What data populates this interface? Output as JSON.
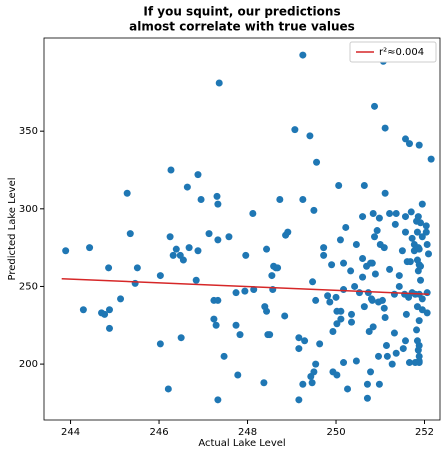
{
  "chart_data": {
    "type": "scatter",
    "title": [
      "If you squint, our predictions",
      "almost correlate with true values"
    ],
    "xlabel": "Actual Lake Level",
    "ylabel": "Predicted Lake Level",
    "xlim": [
      243.4,
      252.35
    ],
    "ylim": [
      164,
      410
    ],
    "xticks": [
      244,
      246,
      248,
      250,
      252
    ],
    "yticks": [
      200,
      250,
      300,
      350
    ],
    "legend": "upper right",
    "series": [
      {
        "color": "#1f77b4",
        "x": [
          243.89,
          244.29,
          244.43,
          244.7,
          244.77,
          244.86,
          244.88,
          244.88,
          245.13,
          245.28,
          245.35,
          245.46,
          245.51,
          246.03,
          246.03,
          246.21,
          246.27,
          246.25,
          246.32,
          246.39,
          246.48,
          246.5,
          246.55,
          246.64,
          246.68,
          246.84,
          246.88,
          246.95,
          246.88,
          247.13,
          247.24,
          247.29,
          247.36,
          247.31,
          247.33,
          247.33,
          247.24,
          247.33,
          247.33,
          247.47,
          247.58,
          247.74,
          247.74,
          247.78,
          247.83,
          247.94,
          247.96,
          248.12,
          248.14,
          248.37,
          248.39,
          248.43,
          248.43,
          248.46,
          248.5,
          248.55,
          248.59,
          248.64,
          248.57,
          248.68,
          248.84,
          248.73,
          248.86,
          248.91,
          249.07,
          249.25,
          249.25,
          249.16,
          249.16,
          249.16,
          249.25,
          249.29,
          249.41,
          249.43,
          249.46,
          249.5,
          249.54,
          249.56,
          249.5,
          249.47,
          249.54,
          249.63,
          249.72,
          249.72,
          249.81,
          249.86,
          249.9,
          249.93,
          249.93,
          250.0,
          250.02,
          250.1,
          250.02,
          250.02,
          250.11,
          250.06,
          250.11,
          250.17,
          250.17,
          250.22,
          250.17,
          250.26,
          250.33,
          250.35,
          250.35,
          250.42,
          250.46,
          250.46,
          250.53,
          250.6,
          250.6,
          250.6,
          250.64,
          250.64,
          250.69,
          250.73,
          250.78,
          250.71,
          250.71,
          250.75,
          250.8,
          250.82,
          250.84,
          250.84,
          250.87,
          250.78,
          250.82,
          250.87,
          250.89,
          250.93,
          250.96,
          250.96,
          250.98,
          251.0,
          250.98,
          251.07,
          251.05,
          251.09,
          251.09,
          251.11,
          251.11,
          251.11,
          251.14,
          251.16,
          251.21,
          251.21,
          251.27,
          251.32,
          251.32,
          251.34,
          251.36,
          251.36,
          251.43,
          251.43,
          251.5,
          251.52,
          251.55,
          251.57,
          251.57,
          251.57,
          251.59,
          251.61,
          251.64,
          251.66,
          251.68,
          251.7,
          251.72,
          251.72,
          251.77,
          251.77,
          251.82,
          251.82,
          251.79,
          251.79,
          251.84,
          251.86,
          251.84,
          251.84,
          251.86,
          251.84,
          251.66,
          251.86,
          251.91,
          251.88,
          251.88,
          251.88,
          251.95,
          251.91,
          251.86,
          251.88,
          251.88,
          251.95,
          251.91,
          251.95,
          252.04,
          252.06,
          252.06,
          252.06,
          251.95,
          252.04,
          252.09,
          251.88,
          251.88,
          251.88,
          251.88,
          251.57,
          252.15
        ],
        "y": [
          273,
          235,
          275,
          233,
          232,
          262,
          235,
          223,
          242,
          310,
          284,
          252,
          262,
          257,
          213,
          184,
          325,
          282,
          270,
          274,
          270,
          217,
          267,
          314,
          275,
          254,
          322,
          306,
          273,
          284,
          229,
          225,
          381,
          308,
          303,
          280,
          241,
          241,
          177,
          205,
          282,
          246,
          225,
          193,
          219,
          247,
          270,
          297,
          248,
          188,
          237,
          234,
          274,
          219,
          219,
          257,
          263,
          262,
          248,
          262,
          231,
          306,
          283,
          285,
          351,
          399,
          306,
          217,
          210,
          177,
          187,
          215,
          347,
          192,
          188,
          195,
          200,
          330,
          299,
          253,
          241,
          213,
          270,
          275,
          244,
          240,
          264,
          221,
          195,
          243,
          193,
          280,
          234,
          226,
          229,
          315,
          234,
          265,
          248,
          288,
          201,
          184,
          260,
          232,
          227,
          250,
          277,
          202,
          246,
          295,
          268,
          256,
          315,
          237,
          263,
          246,
          195,
          187,
          178,
          221,
          242,
          241,
          224,
          297,
          366,
          265,
          265,
          282,
          258,
          286,
          240,
          205,
          187,
          277,
          294,
          395,
          241,
          236,
          275,
          352,
          310,
          230,
          212,
          205,
          297,
          261,
          200,
          220,
          245,
          290,
          207,
          297,
          257,
          250,
          273,
          210,
          245,
          295,
          215,
          285,
          232,
          266,
          243,
          201,
          266,
          298,
          281,
          246,
          277,
          273,
          292,
          222,
          201,
          245,
          267,
          275,
          237,
          215,
          209,
          285,
          342,
          295,
          254,
          245,
          212,
          228,
          242,
          291,
          260,
          264,
          274,
          235,
          263,
          303,
          289,
          277,
          246,
          233,
          282,
          285,
          271,
          205,
          202,
          201,
          341,
          345,
          332
        ]
      }
    ],
    "fit": {
      "name": "r²≈0.004",
      "color": "#d62728",
      "x": [
        243.8,
        252.1
      ],
      "y": [
        255,
        245
      ]
    }
  }
}
